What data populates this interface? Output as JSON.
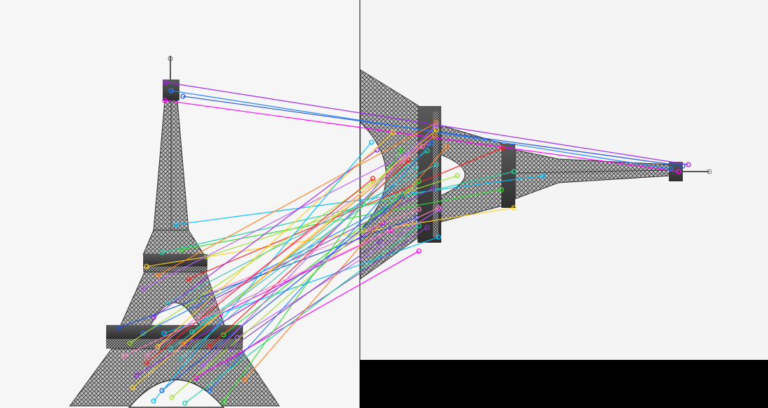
{
  "scene": {
    "kind": "feature-match-visualization",
    "panels": [
      {
        "id": "left",
        "subject": "eiffel-tower-upright",
        "background_color": "#f6f6f6"
      },
      {
        "id": "right",
        "subject": "eiffel-tower-rotated",
        "background_color": "#f4f4f4",
        "padding_color": "#000000"
      }
    ],
    "match_line_colors": [
      "#a020f0",
      "#ff00ff",
      "#1e4fd8",
      "#2080ff",
      "#00c0ff",
      "#20d0a0",
      "#30e030",
      "#a0e030",
      "#ffd020",
      "#ff8020",
      "#ff2020",
      "#c060ff",
      "#ff80c0",
      "#40c0c0",
      "#8040c0"
    ],
    "tower_color": "#4a4a4a",
    "tower_highlight_color": "#9a9a9a"
  }
}
